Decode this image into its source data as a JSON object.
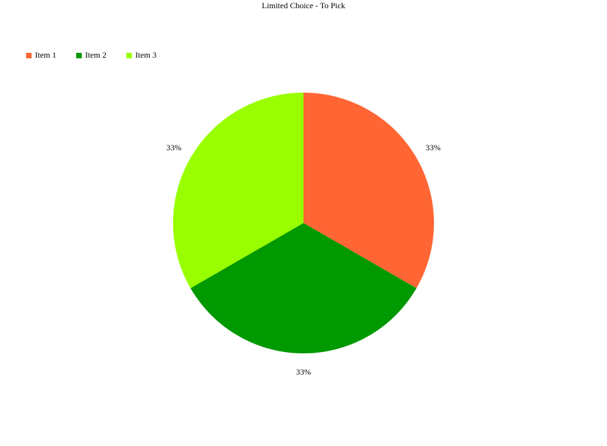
{
  "chart_data": {
    "type": "pie",
    "title": "Limited Choice - To Pick",
    "categories": [
      "Item 1",
      "Item 2",
      "Item 3"
    ],
    "values": [
      33,
      33,
      33
    ],
    "value_labels": [
      "33%",
      "33%",
      "33%"
    ],
    "colors": [
      "#ff6633",
      "#009900",
      "#99ff00"
    ],
    "legend": "top-left"
  }
}
